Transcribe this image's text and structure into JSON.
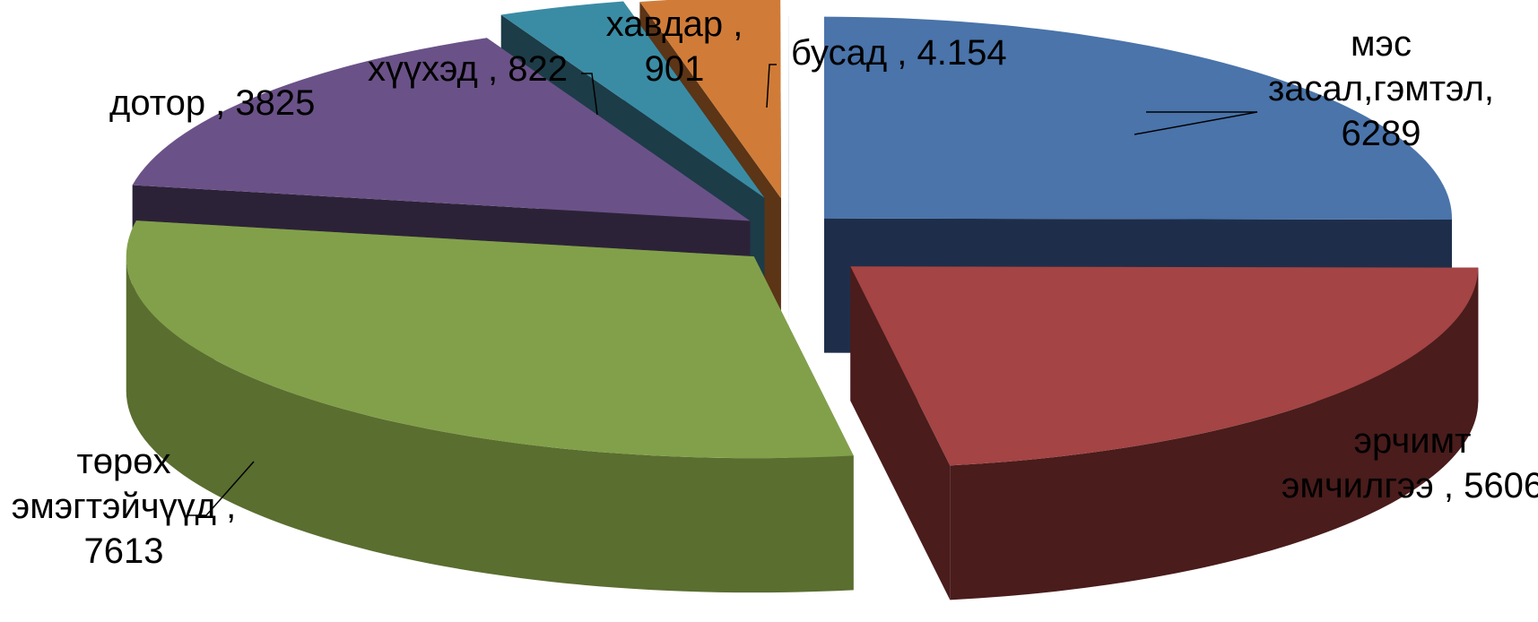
{
  "chart_data": {
    "type": "pie",
    "style": "3d-exploded",
    "title": "",
    "legend": "none",
    "slices": [
      {
        "name": "мэс засал,гэмтэл",
        "value": 6289,
        "label_lines": [
          "мэс",
          "засал,гэмтэл,",
          "6289"
        ],
        "color": "#4a74aa",
        "side_color": "#1e2e4a"
      },
      {
        "name": "эрчимт эмчилгээ",
        "value": 5606,
        "label_lines": [
          "эрчимт",
          "эмчилгээ , 5606"
        ],
        "color": "#a44444",
        "side_color": "#4a1c1c"
      },
      {
        "name": "төрөх эмэгтэйчүүд",
        "value": 7613,
        "label_lines": [
          "төрөх",
          "эмэгтэйчүүд ,",
          "7613"
        ],
        "color": "#82a04a",
        "side_color": "#5a6e30"
      },
      {
        "name": "дотор",
        "value": 3825,
        "label_lines": [
          "дотор , 3825"
        ],
        "color": "#6a5288",
        "side_color": "#2c2238"
      },
      {
        "name": "хүүхэд",
        "value": 822,
        "label_lines": [
          "хүүхэд , 822"
        ],
        "color": "#3a8ca4",
        "side_color": "#1c3c48"
      },
      {
        "name": "хавдар",
        "value": 901,
        "label_lines": [
          "хавдар ,",
          "901"
        ],
        "color": "#d07c38",
        "side_color": "#5c3416"
      },
      {
        "name": "бусад",
        "value": 4.154,
        "label_lines": [
          "бусад , 4.154"
        ],
        "color": "#e8eef6",
        "side_color": "#b0bccc"
      }
    ]
  }
}
